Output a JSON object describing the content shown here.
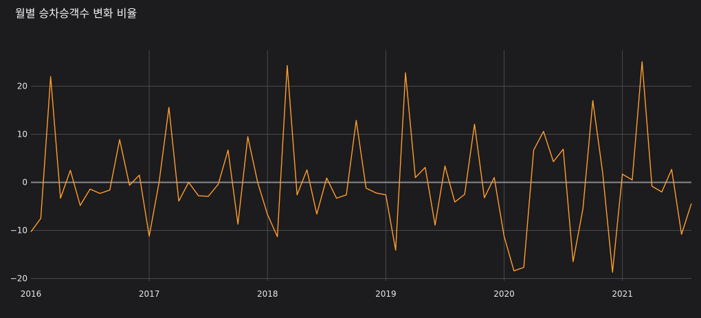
{
  "colors": {
    "background": "#1c1b1e",
    "grid": "#4a4a4d",
    "zero_line": "#8a8a8d",
    "line": "#ff9f2e"
  },
  "chart_data": {
    "type": "line",
    "title": "월별 승차승객수 변화 비율",
    "xlabel": "",
    "ylabel": "",
    "grid": true,
    "legend": "none",
    "x_ticks": [
      "2016",
      "2017",
      "2018",
      "2019",
      "2020",
      "2021"
    ],
    "y_ticks": [
      -20,
      -10,
      0,
      10,
      20
    ],
    "xlim": [
      "2016-01",
      "2021-08"
    ],
    "ylim": [
      -20.5,
      27.5
    ],
    "series": [
      {
        "x": [
          "2016-01",
          "2016-02",
          "2016-03",
          "2016-04",
          "2016-05",
          "2016-06",
          "2016-07",
          "2016-08",
          "2016-09",
          "2016-10",
          "2016-11",
          "2016-12",
          "2017-01",
          "2017-02",
          "2017-03",
          "2017-04",
          "2017-05",
          "2017-06",
          "2017-07",
          "2017-08",
          "2017-09",
          "2017-10",
          "2017-11",
          "2017-12",
          "2018-01",
          "2018-02",
          "2018-03",
          "2018-04",
          "2018-05",
          "2018-06",
          "2018-07",
          "2018-08",
          "2018-09",
          "2018-10",
          "2018-11",
          "2018-12",
          "2019-01",
          "2019-02",
          "2019-03",
          "2019-04",
          "2019-05",
          "2019-06",
          "2019-07",
          "2019-08",
          "2019-09",
          "2019-10",
          "2019-11",
          "2019-12",
          "2020-01",
          "2020-02",
          "2020-03",
          "2020-04",
          "2020-05",
          "2020-06",
          "2020-07",
          "2020-08",
          "2020-09",
          "2020-10",
          "2020-11",
          "2020-12",
          "2021-01",
          "2021-02",
          "2021-03",
          "2021-04",
          "2021-05",
          "2021-06",
          "2021-07",
          "2021-08"
        ],
        "values": [
          -10.3,
          -7.5,
          22.0,
          -3.3,
          2.5,
          -4.8,
          -1.4,
          -2.3,
          -1.6,
          8.9,
          -0.6,
          1.5,
          -11.2,
          0.0,
          15.6,
          -3.9,
          0.0,
          -2.8,
          -2.9,
          -0.4,
          6.7,
          -8.7,
          9.5,
          0.0,
          -6.7,
          -11.3,
          24.3,
          -2.6,
          2.6,
          -6.6,
          0.9,
          -3.3,
          -2.6,
          12.9,
          -1.2,
          -2.2,
          -2.6,
          -14.1,
          22.8,
          1.0,
          3.1,
          -8.9,
          3.4,
          -4.1,
          -2.5,
          12.1,
          -3.2,
          1.0,
          -11.2,
          -18.4,
          -17.7,
          6.7,
          10.6,
          4.3,
          6.9,
          -16.5,
          -5.5,
          17.0,
          2.0,
          -18.7,
          1.7,
          0.5,
          25.1,
          -0.8,
          -2.0,
          2.7,
          -10.8,
          -4.4
        ]
      }
    ]
  }
}
